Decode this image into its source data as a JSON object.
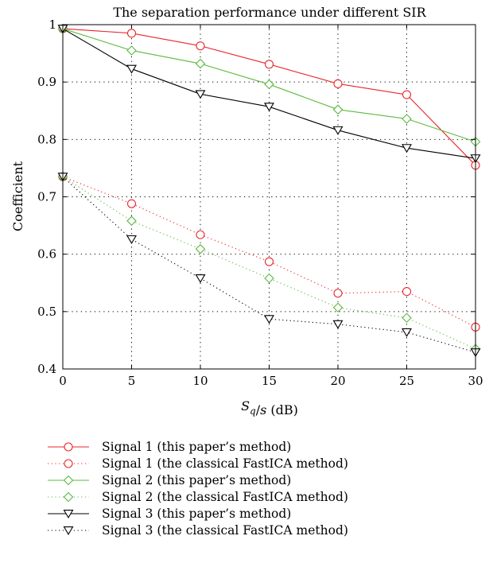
{
  "chart_data": {
    "type": "line",
    "title": "The separation performance under different SIR",
    "xlabel": "S_q/s (dB)",
    "xlabel_parts": {
      "main": "S",
      "sub": "q",
      "rest": "/s (dB)"
    },
    "ylabel": "Coefficient",
    "x": [
      0,
      5,
      10,
      15,
      20,
      25,
      30
    ],
    "xlim": [
      0,
      30
    ],
    "ylim": [
      0.4,
      1.0
    ],
    "xticks": [
      "0",
      "5",
      "10",
      "15",
      "20",
      "25",
      "30"
    ],
    "yticks": [
      "0.4",
      "0.5",
      "0.6",
      "0.7",
      "0.8",
      "0.9",
      "1"
    ],
    "xtick_values": [
      0,
      5,
      10,
      15,
      20,
      25,
      30
    ],
    "ytick_values": [
      0.4,
      0.5,
      0.6,
      0.7,
      0.8,
      0.9,
      1.0
    ],
    "grid": true,
    "legend_position": "below",
    "series": [
      {
        "name": "Signal 1 (this paper’s method)",
        "color": "#e8262b",
        "marker": "circle",
        "line": "solid",
        "values": [
          0.993,
          0.985,
          0.963,
          0.931,
          0.897,
          0.878,
          0.755
        ]
      },
      {
        "name": "Signal 1 (the classical FastICA method)",
        "color": "#e8262b",
        "marker": "circle",
        "line": "dotted",
        "values": [
          0.735,
          0.688,
          0.634,
          0.587,
          0.532,
          0.535,
          0.473
        ]
      },
      {
        "name": "Signal 2 (this paper’s method)",
        "color": "#5cb940",
        "marker": "diamond",
        "line": "solid",
        "values": [
          0.993,
          0.955,
          0.932,
          0.896,
          0.852,
          0.836,
          0.796
        ]
      },
      {
        "name": "Signal 2 (the classical FastICA method)",
        "color": "#5cb940",
        "marker": "diamond",
        "line": "dotted",
        "values": [
          0.735,
          0.658,
          0.609,
          0.558,
          0.507,
          0.489,
          0.435
        ]
      },
      {
        "name": "Signal 3 (this paper’s method)",
        "color": "#000000",
        "marker": "triangle-down",
        "line": "solid",
        "values": [
          0.993,
          0.923,
          0.879,
          0.857,
          0.816,
          0.785,
          0.767
        ]
      },
      {
        "name": "Signal 3 (the classical FastICA method)",
        "color": "#000000",
        "marker": "triangle-down",
        "line": "dotted",
        "values": [
          0.735,
          0.626,
          0.558,
          0.487,
          0.478,
          0.464,
          0.429
        ]
      }
    ]
  }
}
